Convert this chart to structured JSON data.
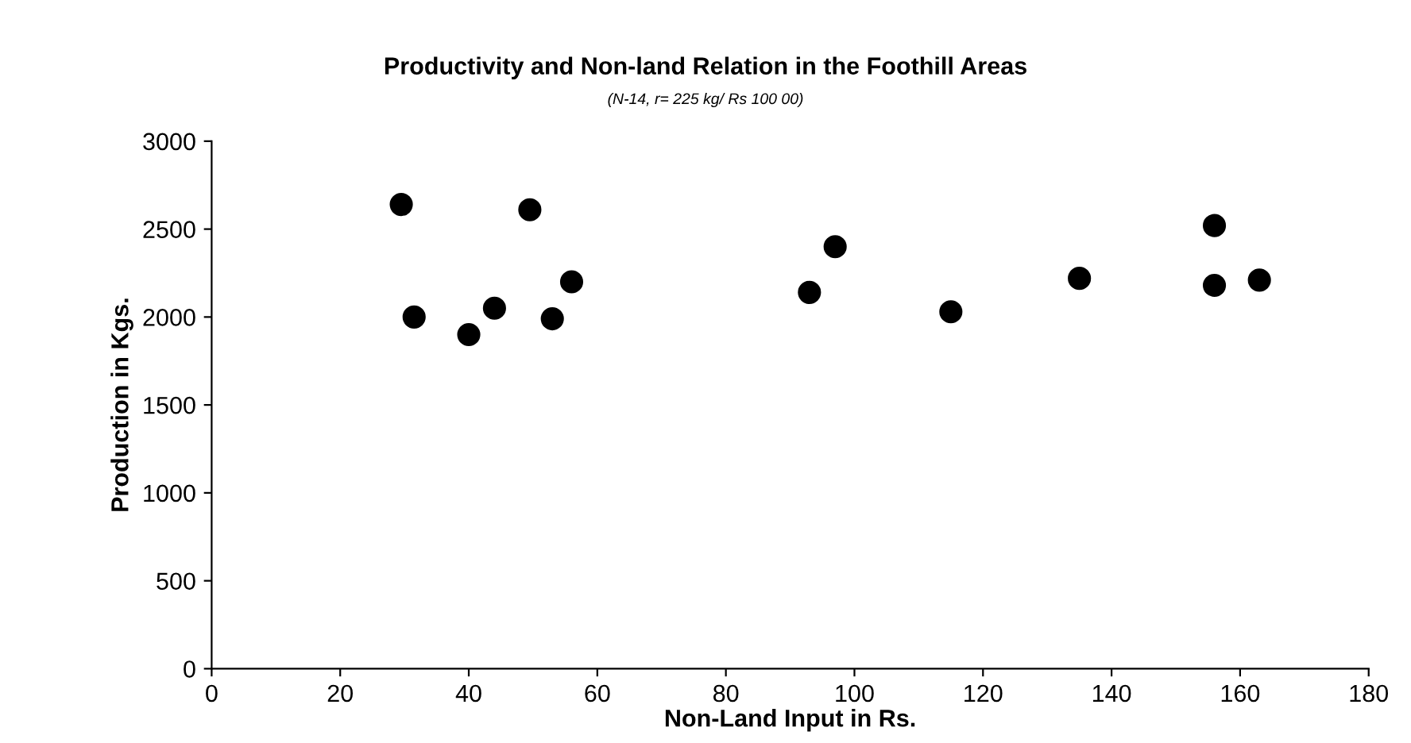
{
  "chart_data": {
    "type": "scatter",
    "title": "Productivity and Non-land Relation in the Foothill Areas",
    "subtitle": "(N-14, r= 225 kg/ Rs 100 00)",
    "xlabel": "Non-Land Input in Rs.",
    "ylabel": "Production in Kgs.",
    "x": [
      29.5,
      31.5,
      40,
      44,
      49.5,
      53,
      56,
      93,
      97,
      115,
      135,
      156,
      156,
      163
    ],
    "series": [
      {
        "color": "#000000",
        "values": [
          2640,
          2000,
          1900,
          2050,
          2610,
          1990,
          2200,
          2140,
          2400,
          2030,
          2220,
          2520,
          2180,
          2210
        ]
      }
    ],
    "xlim": [
      0,
      180
    ],
    "xticks": [
      0,
      20,
      40,
      60,
      80,
      100,
      120,
      140,
      160,
      180
    ],
    "ylim": [
      0,
      3000
    ],
    "yticks": [
      0,
      500,
      1000,
      1500,
      2000,
      2500,
      3000
    ],
    "grid": false,
    "legend": false,
    "marker": "circle"
  }
}
